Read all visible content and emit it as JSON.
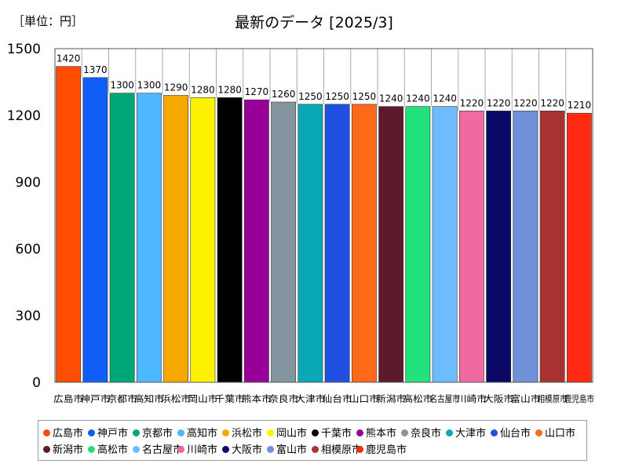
{
  "header": {
    "unit_label": "［単位：円］",
    "title": "最新のデータ [2025/3]"
  },
  "chart_data": {
    "type": "bar",
    "title": "最新のデータ [2025/3]",
    "unit": "［単位：円］",
    "ylim": [
      0,
      1500
    ],
    "yticks": [
      0,
      300,
      600,
      900,
      1200,
      1500
    ],
    "grid": false,
    "legend_position": "bottom",
    "categories": [
      "広島市",
      "神戸市",
      "京都市",
      "高知市",
      "浜松市",
      "岡山市",
      "千葉市",
      "熊本市",
      "奈良市",
      "大津市",
      "仙台市",
      "山口市",
      "新潟市",
      "高松市",
      "名古屋市",
      "川崎市",
      "大阪市",
      "富山市",
      "相模原市",
      "鹿児島市"
    ],
    "values": [
      1420,
      1370,
      1300,
      1300,
      1290,
      1280,
      1280,
      1270,
      1260,
      1250,
      1250,
      1250,
      1240,
      1240,
      1240,
      1220,
      1220,
      1220,
      1220,
      1210
    ],
    "colors": [
      "#ff4d00",
      "#0f5ef7",
      "#00a878",
      "#4db8ff",
      "#f5a800",
      "#fff200",
      "#000000",
      "#990099",
      "#8495a0",
      "#0aa8b4",
      "#2050e0",
      "#ff6a1a",
      "#5c1a2a",
      "#22e07a",
      "#6cbcff",
      "#ee6aa0",
      "#0a0a66",
      "#7090d8",
      "#a83232",
      "#ff2a12"
    ]
  }
}
